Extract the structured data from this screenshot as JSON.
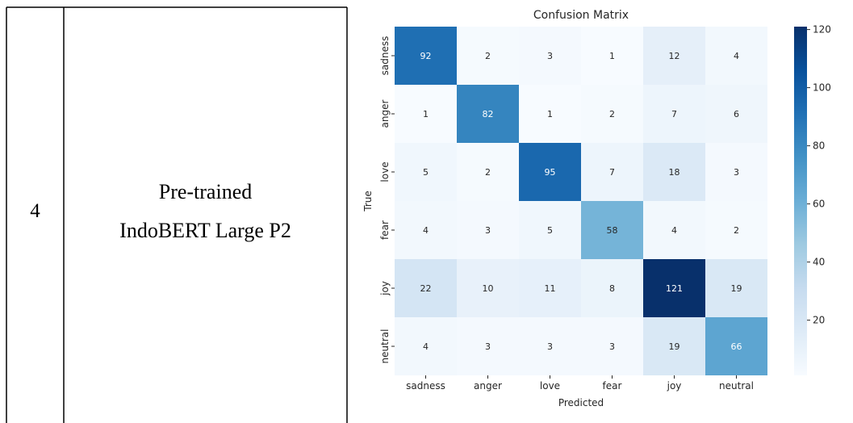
{
  "table": {
    "row_number": "4",
    "model_line1": "Pre-trained",
    "model_line2": "IndoBERT Large P2"
  },
  "chart_data": {
    "type": "heatmap",
    "title": "Confusion Matrix",
    "xlabel": "Predicted",
    "ylabel": "True",
    "x_categories": [
      "sadness",
      "anger",
      "love",
      "fear",
      "joy",
      "neutral"
    ],
    "y_categories": [
      "sadness",
      "anger",
      "love",
      "fear",
      "joy",
      "neutral"
    ],
    "matrix": [
      [
        92,
        2,
        3,
        1,
        12,
        4
      ],
      [
        1,
        82,
        1,
        2,
        7,
        6
      ],
      [
        5,
        2,
        95,
        7,
        18,
        3
      ],
      [
        4,
        3,
        5,
        58,
        4,
        2
      ],
      [
        22,
        10,
        11,
        8,
        121,
        19
      ],
      [
        4,
        3,
        3,
        3,
        19,
        66
      ]
    ],
    "colorbar": {
      "colormap": "Blues",
      "min": 1,
      "max": 121,
      "ticks": [
        20,
        40,
        60,
        80,
        100,
        120
      ]
    }
  }
}
